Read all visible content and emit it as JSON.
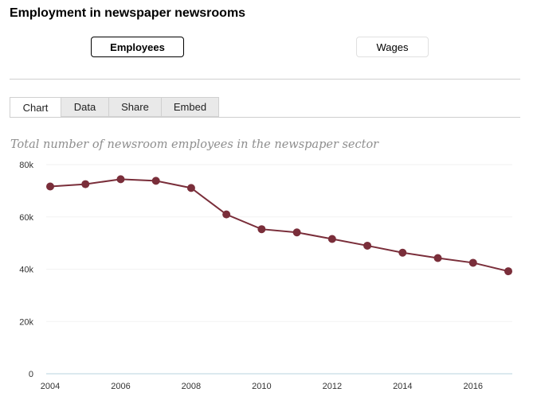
{
  "page": {
    "title": "Employment in newspaper newsrooms",
    "toggles": {
      "employees": "Employees",
      "wages": "Wages"
    },
    "tabs": [
      {
        "label": "Chart"
      },
      {
        "label": "Data"
      },
      {
        "label": "Share"
      },
      {
        "label": "Embed"
      }
    ]
  },
  "chart_data": {
    "type": "line",
    "title": "Total number of newsroom employees in the newspaper sector",
    "xlabel": "",
    "ylabel": "",
    "x": [
      2004,
      2005,
      2006,
      2007,
      2008,
      2009,
      2010,
      2011,
      2012,
      2013,
      2014,
      2015,
      2016,
      2017
    ],
    "series": [
      {
        "values": [
          71640,
          72520,
          74410,
          73810,
          71070,
          60950,
          55300,
          54070,
          51560,
          48990,
          46310,
          44260,
          42450,
          39210
        ]
      }
    ],
    "ylim": [
      0,
      80000
    ],
    "y_ticks": [
      0,
      20000,
      40000,
      60000,
      80000
    ],
    "y_tick_labels": [
      "0",
      "20k",
      "40k",
      "60k",
      "80k"
    ],
    "x_ticks": [
      2004,
      2006,
      2008,
      2010,
      2012,
      2014,
      2016
    ],
    "x_tick_labels": [
      "2004",
      "2006",
      "2008",
      "2010",
      "2012",
      "2014",
      "2016"
    ],
    "grid": true,
    "colors": {
      "line": "#7a2e3a",
      "grid": "#f2f2f2",
      "axis": "#b8d3df"
    }
  }
}
